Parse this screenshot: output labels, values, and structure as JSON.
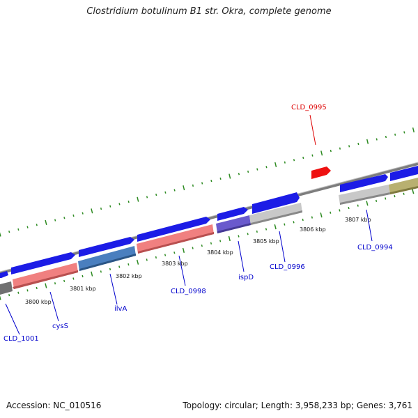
{
  "title": "Clostridium botulinum B1 str. Okra, complete genome",
  "accession": "Accession: NC_010516",
  "summary": "Topology: circular; Length: 3,958,233 bp; Genes: 3,761",
  "colors": {
    "backbone": "#8a8a8a",
    "forward_arrow": "#1c1ce6",
    "highlight_arrow": "#ee1111",
    "tick": "#2e8b22",
    "label_default": "#0000cc",
    "label_highlight": "#dd0000"
  },
  "ticks": [
    {
      "label": "3800 kbp"
    },
    {
      "label": "3801 kbp"
    },
    {
      "label": "3802 kbp"
    },
    {
      "label": "3803 kbp"
    },
    {
      "label": "3804 kbp"
    },
    {
      "label": "3805 kbp"
    },
    {
      "label": "3806 kbp"
    },
    {
      "label": "3807 kbp"
    }
  ],
  "gene_labels": [
    {
      "name": "CLD_1001",
      "color": "#0000cc"
    },
    {
      "name": "cysS",
      "color": "#0000cc"
    },
    {
      "name": "ilvA",
      "color": "#0000cc"
    },
    {
      "name": "CLD_0998",
      "color": "#0000cc"
    },
    {
      "name": "ispD",
      "color": "#0000cc"
    },
    {
      "name": "CLD_0996",
      "color": "#0000cc"
    },
    {
      "name": "CLD_0994",
      "color": "#0000cc"
    },
    {
      "name": "CLD_0995",
      "color": "#dd0000"
    }
  ]
}
